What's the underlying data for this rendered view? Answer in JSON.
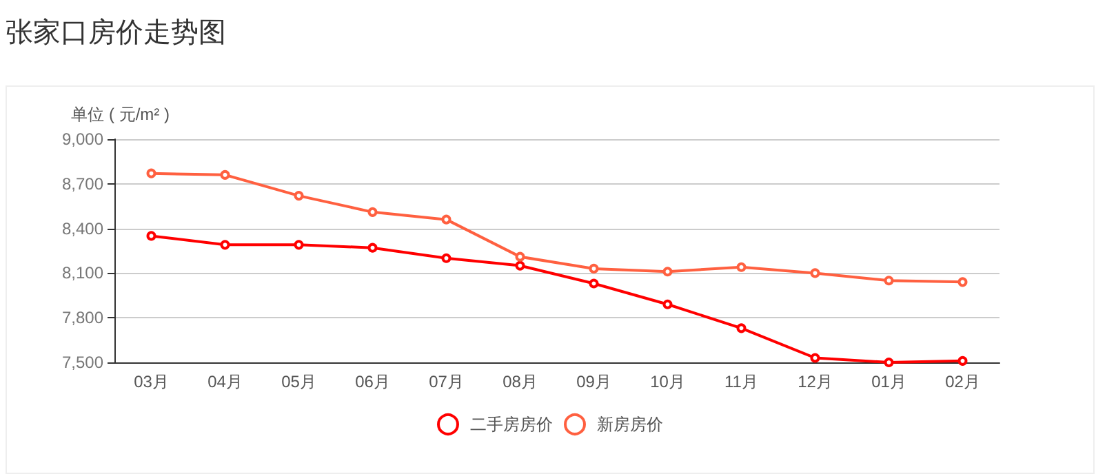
{
  "chart_data": {
    "type": "line",
    "title": "张家口房价走势图",
    "ylabel": "单位 ( 元/m² )",
    "categories": [
      "03月",
      "04月",
      "05月",
      "06月",
      "07月",
      "08月",
      "09月",
      "10月",
      "11月",
      "12月",
      "01月",
      "02月"
    ],
    "series": [
      {
        "name": "二手房房价",
        "color": "#ff0000",
        "values": [
          8350,
          8290,
          8290,
          8270,
          8200,
          8150,
          8030,
          7890,
          7730,
          7530,
          7500,
          7510
        ]
      },
      {
        "name": "新房房价",
        "color": "#ff6040",
        "values": [
          8770,
          8760,
          8620,
          8510,
          8460,
          8210,
          8130,
          8110,
          8140,
          8100,
          8050,
          8040
        ]
      }
    ],
    "ylim": [
      7500,
      9000
    ],
    "yticks": [
      {
        "value": 7500,
        "label": "7,500"
      },
      {
        "value": 7800,
        "label": "7,800"
      },
      {
        "value": 8100,
        "label": "8,100"
      },
      {
        "value": 8400,
        "label": "8,400"
      },
      {
        "value": 8700,
        "label": "8,700"
      },
      {
        "value": 9000,
        "label": "9,000"
      }
    ],
    "grid": "y",
    "legend": "bottom",
    "marker": "circle",
    "line_style": "solid"
  }
}
